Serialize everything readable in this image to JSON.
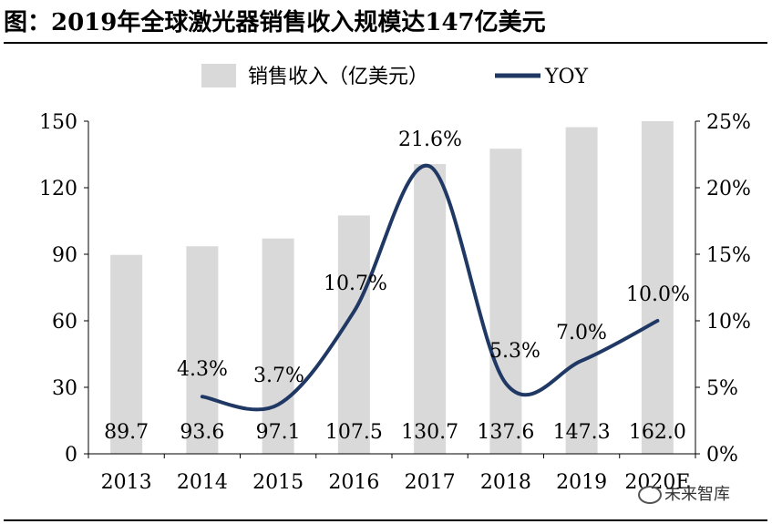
{
  "title": "图：2019年全球激光器销售收入规模达147亿美元",
  "watermark": "未来智库",
  "chart_data": {
    "type": "bar",
    "categories": [
      "2013",
      "2014",
      "2015",
      "2016",
      "2017",
      "2018",
      "2019",
      "2020E"
    ],
    "series": [
      {
        "name": "销售收入（亿美元）",
        "type": "bar",
        "axis": "left",
        "values": [
          89.7,
          93.6,
          97.1,
          107.5,
          130.7,
          137.6,
          147.3,
          162.0
        ],
        "color": "#d9d9d9"
      },
      {
        "name": "YOY",
        "type": "line",
        "axis": "right",
        "values": [
          null,
          4.3,
          3.7,
          10.7,
          21.6,
          5.3,
          7.0,
          10.0
        ],
        "color": "#1f3864"
      }
    ],
    "value_labels": [
      "89.7",
      "93.6",
      "97.1",
      "107.5",
      "130.7",
      "137.6",
      "147.3",
      "162.0"
    ],
    "yoy_labels": [
      "",
      "4.3%",
      "3.7%",
      "10.7%",
      "21.6%",
      "5.3%",
      "7.0%",
      "10.0%"
    ],
    "y_left": {
      "ticks": [
        "0",
        "30",
        "60",
        "90",
        "120",
        "150"
      ],
      "ylim": [
        0,
        150
      ]
    },
    "y_right": {
      "ticks": [
        "0%",
        "5%",
        "10%",
        "15%",
        "20%",
        "25%"
      ],
      "ylim": [
        0,
        25
      ]
    },
    "legend_position": "top",
    "grid": false
  }
}
